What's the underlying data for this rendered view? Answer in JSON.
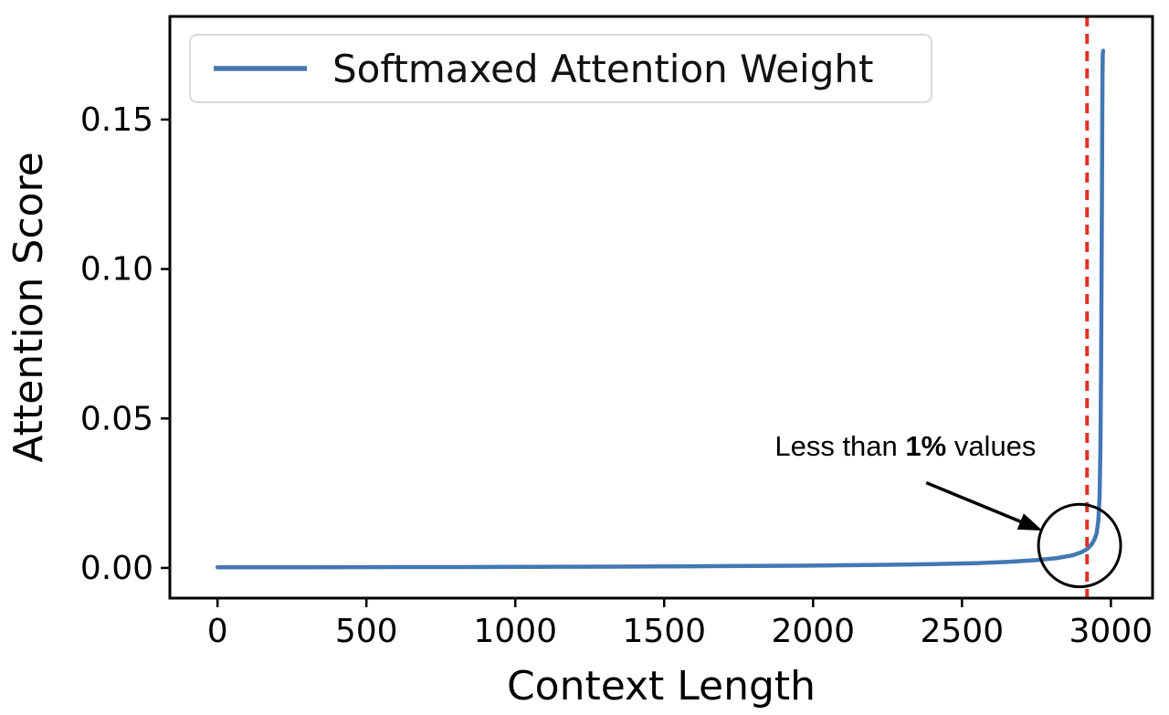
{
  "page": {
    "background": "#ffffff"
  },
  "chart_data": {
    "type": "line",
    "title": "",
    "xlabel": "Context Length",
    "ylabel": "Attention Score",
    "xlim": [
      -160,
      3140
    ],
    "ylim": [
      -0.0101,
      0.1845
    ],
    "grid": false,
    "x_ticks": [
      0,
      500,
      1000,
      1500,
      2000,
      2500,
      3000
    ],
    "x_tick_labels": [
      "0",
      "500",
      "1000",
      "1500",
      "2000",
      "2500",
      "3000"
    ],
    "y_ticks": [
      0.0,
      0.05,
      0.1,
      0.15
    ],
    "y_tick_labels": [
      "0.00",
      "0.05",
      "0.10",
      "0.15"
    ],
    "legend": {
      "position": "upper left",
      "entries": [
        {
          "label": "Softmaxed Attention Weight",
          "color": "#4477b3"
        }
      ]
    },
    "series": [
      {
        "name": "Softmaxed Attention Weight",
        "color": "#4477b3",
        "line_width": 4.5,
        "points": [
          [
            0,
            0.00018
          ],
          [
            150,
            0.0002
          ],
          [
            300,
            0.00022
          ],
          [
            450,
            0.00025
          ],
          [
            600,
            0.00028
          ],
          [
            750,
            0.0003
          ],
          [
            900,
            0.00033
          ],
          [
            1050,
            0.00037
          ],
          [
            1200,
            0.0004
          ],
          [
            1350,
            0.00045
          ],
          [
            1500,
            0.0005
          ],
          [
            1650,
            0.00058
          ],
          [
            1800,
            0.00066
          ],
          [
            1950,
            0.00076
          ],
          [
            2100,
            0.0009
          ],
          [
            2250,
            0.00105
          ],
          [
            2400,
            0.00125
          ],
          [
            2550,
            0.0016
          ],
          [
            2650,
            0.002
          ],
          [
            2750,
            0.0026
          ],
          [
            2820,
            0.0033
          ],
          [
            2870,
            0.0042
          ],
          [
            2900,
            0.0052
          ],
          [
            2920,
            0.0063
          ],
          [
            2935,
            0.0078
          ],
          [
            2945,
            0.0095
          ],
          [
            2952,
            0.0115
          ],
          [
            2958,
            0.016
          ],
          [
            2962,
            0.024
          ],
          [
            2965,
            0.04
          ],
          [
            2967,
            0.065
          ],
          [
            2969,
            0.1
          ],
          [
            2970,
            0.125
          ],
          [
            2971,
            0.15
          ],
          [
            2972,
            0.165
          ],
          [
            2973,
            0.172
          ],
          [
            2974,
            0.173
          ]
        ]
      }
    ],
    "vline": {
      "x": 2920,
      "color": "#df3228",
      "style": "dashed",
      "width": 4
    },
    "annotation": {
      "text_prefix": "Less than ",
      "text_bold": "1%",
      "text_suffix": " values",
      "text_x": 2310,
      "text_y": 0.0375,
      "arrow_tail": [
        2380,
        0.0285
      ],
      "arrow_head": [
        2770,
        0.0125
      ],
      "circle_center": [
        2895,
        0.0075
      ],
      "circle_rx": 138,
      "circle_ry": 0.0138,
      "color": "#000000"
    }
  }
}
